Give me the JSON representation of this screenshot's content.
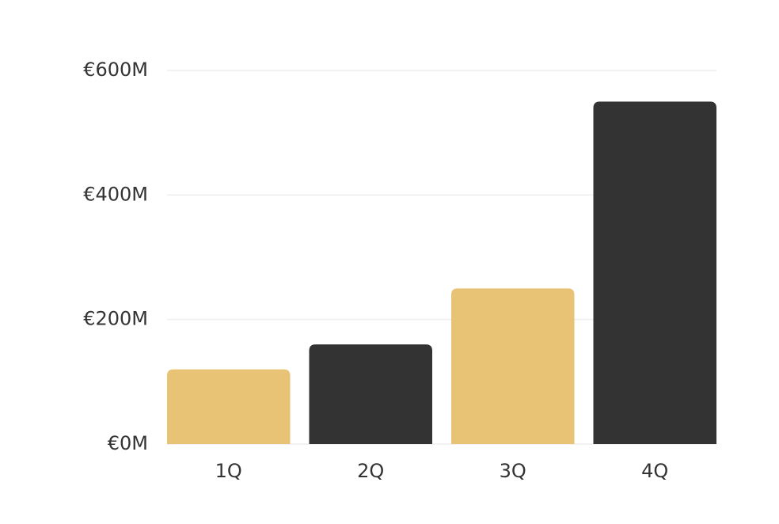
{
  "chart_data": {
    "type": "bar",
    "categories": [
      "1Q",
      "2Q",
      "3Q",
      "4Q"
    ],
    "values": [
      120,
      160,
      250,
      550
    ],
    "colors": [
      "#e8c275",
      "#333333",
      "#e8c275",
      "#333333"
    ],
    "ylim": [
      0,
      600
    ],
    "yticks": [
      {
        "value": 0,
        "label": "€0M"
      },
      {
        "value": 200,
        "label": "€200M"
      },
      {
        "value": 400,
        "label": "€400M"
      },
      {
        "value": 600,
        "label": "€600M"
      }
    ],
    "grid": true
  }
}
